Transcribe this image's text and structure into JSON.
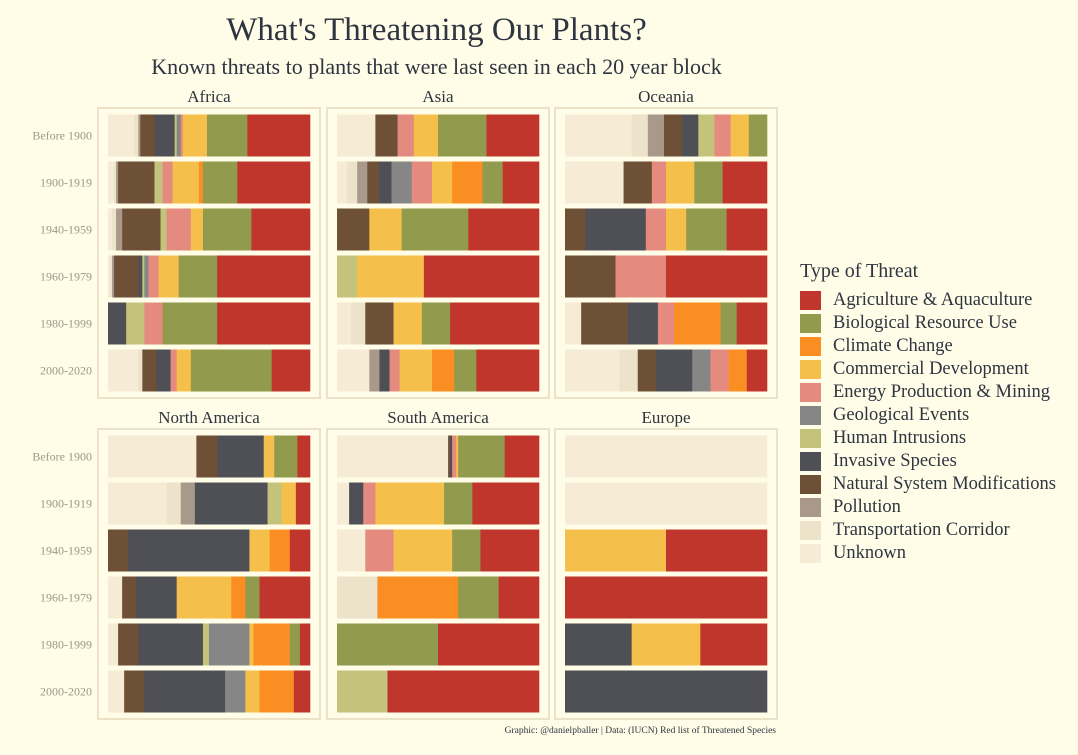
{
  "title": "What's Threatening Our Plants?",
  "subtitle": "Known threats to plants that were last seen in each 20 year block",
  "caption": "Graphic: @danielpballer | Data: (IUCN) Red list of Threatened Species",
  "legend": {
    "title": "Type of Threat",
    "items": [
      {
        "label": "Agriculture & Aquaculture",
        "color": "#c0362c"
      },
      {
        "label": "Biological Resource Use",
        "color": "#929b4d"
      },
      {
        "label": "Climate Change",
        "color": "#fb8e22"
      },
      {
        "label": "Commercial Development",
        "color": "#f4bf4b"
      },
      {
        "label": "Energy Production & Mining",
        "color": "#e58a7e"
      },
      {
        "label": "Geological Events",
        "color": "#868686"
      },
      {
        "label": "Human Intrusions",
        "color": "#c3c37b"
      },
      {
        "label": "Invasive Species",
        "color": "#4f4f56"
      },
      {
        "label": "Natural System Modifications",
        "color": "#6e5036"
      },
      {
        "label": "Pollution",
        "color": "#a8998a"
      },
      {
        "label": "Transportation Corridor",
        "color": "#ede3ca"
      },
      {
        "label": "Unknown",
        "color": "#f6ecd6"
      }
    ]
  },
  "chart_data": {
    "type": "bar",
    "orientation": "horizontal-stacked-proportion",
    "categories": [
      "Before 1900",
      "1900-1919",
      "1940-1959",
      "1960-1979",
      "1980-1999",
      "2000-2020"
    ],
    "stack_order": [
      "Unknown",
      "Transportation Corridor",
      "Pollution",
      "Natural System Modifications",
      "Invasive Species",
      "Human Intrusions",
      "Geological Events",
      "Energy Production & Mining",
      "Commercial Development",
      "Climate Change",
      "Biological Resource Use",
      "Agriculture & Aquaculture"
    ],
    "panels": [
      {
        "name": "Africa",
        "values": [
          [
            0.13,
            0.02,
            0.01,
            0.07,
            0.1,
            0.01,
            0.02,
            0.01,
            0.12,
            0,
            0.2,
            0.31
          ],
          [
            0.03,
            0.01,
            0.01,
            0.18,
            0,
            0.04,
            0,
            0.05,
            0.13,
            0.02,
            0.17,
            0.36
          ],
          [
            0.02,
            0.02,
            0.03,
            0.19,
            0,
            0.03,
            0,
            0.12,
            0.06,
            0,
            0.24,
            0.29
          ],
          [
            0.01,
            0.01,
            0.01,
            0.12,
            0.02,
            0.01,
            0.02,
            0.05,
            0.1,
            0,
            0.19,
            0.46
          ],
          [
            0,
            0,
            0,
            0,
            0.09,
            0.09,
            0,
            0.09,
            0,
            0,
            0.27,
            0.46
          ],
          [
            0.15,
            0.02,
            0,
            0.07,
            0.07,
            0,
            0,
            0.03,
            0.07,
            0,
            0.4,
            0.19
          ]
        ]
      },
      {
        "name": "Asia",
        "values": [
          [
            0.19,
            0,
            0,
            0.11,
            0,
            0,
            0,
            0.08,
            0.12,
            0,
            0.24,
            0.26
          ],
          [
            0.05,
            0.05,
            0.05,
            0.06,
            0.06,
            0,
            0.1,
            0.1,
            0.1,
            0.15,
            0.1,
            0.18
          ],
          [
            0,
            0,
            0,
            0.16,
            0,
            0,
            0,
            0,
            0.16,
            0,
            0.33,
            0.35
          ],
          [
            0,
            0,
            0,
            0,
            0,
            0.1,
            0,
            0,
            0.33,
            0,
            0,
            0.57
          ],
          [
            0.07,
            0.07,
            0,
            0.14,
            0,
            0,
            0,
            0,
            0.14,
            0,
            0.14,
            0.44
          ],
          [
            0.16,
            0,
            0.05,
            0,
            0.05,
            0,
            0,
            0.05,
            0.16,
            0.11,
            0.11,
            0.31
          ]
        ]
      },
      {
        "name": "Oceania",
        "values": [
          [
            0.33,
            0.08,
            0.08,
            0.09,
            0.08,
            0.08,
            0,
            0.08,
            0.09,
            0,
            0.09,
            0
          ],
          [
            0.29,
            0,
            0,
            0.14,
            0,
            0,
            0,
            0.07,
            0.14,
            0,
            0.14,
            0.22
          ],
          [
            0,
            0,
            0,
            0.1,
            0.3,
            0,
            0,
            0.1,
            0.1,
            0,
            0.2,
            0.2
          ],
          [
            0,
            0,
            0,
            0.25,
            0,
            0,
            0,
            0.25,
            0,
            0,
            0,
            0.5
          ],
          [
            0.08,
            0,
            0,
            0.23,
            0.15,
            0,
            0,
            0.08,
            0,
            0.23,
            0.08,
            0.15
          ],
          [
            0.27,
            0.09,
            0,
            0.09,
            0.18,
            0,
            0.09,
            0.09,
            0,
            0.09,
            0,
            0.1
          ]
        ]
      },
      {
        "name": "North America",
        "values": [
          [
            0.42,
            0,
            0,
            0.1,
            0.22,
            0,
            0,
            0,
            0.05,
            0,
            0.11,
            0.06
          ],
          [
            0.29,
            0.07,
            0.07,
            0,
            0.36,
            0.07,
            0,
            0,
            0.07,
            0,
            0,
            0.07
          ],
          [
            0,
            0,
            0,
            0.1,
            0.6,
            0,
            0,
            0,
            0.1,
            0.1,
            0,
            0.1
          ],
          [
            0.07,
            0,
            0,
            0.07,
            0.2,
            0,
            0,
            0,
            0.27,
            0.07,
            0.07,
            0.25
          ],
          [
            0.05,
            0,
            0,
            0.1,
            0.32,
            0.03,
            0.2,
            0,
            0.02,
            0.18,
            0.05,
            0.05
          ],
          [
            0.08,
            0,
            0,
            0.1,
            0.4,
            0,
            0.1,
            0,
            0.07,
            0.17,
            0,
            0.08
          ]
        ]
      },
      {
        "name": "South America",
        "values": [
          [
            0.55,
            0,
            0,
            0.01,
            0.01,
            0,
            0,
            0.02,
            0.01,
            0,
            0.23,
            0.17
          ],
          [
            0.06,
            0,
            0,
            0,
            0.07,
            0,
            0,
            0.06,
            0.34,
            0,
            0.14,
            0.33
          ],
          [
            0.14,
            0,
            0,
            0,
            0,
            0,
            0,
            0.14,
            0.29,
            0,
            0.14,
            0.29
          ],
          [
            0,
            0.2,
            0,
            0,
            0,
            0,
            0,
            0,
            0,
            0.4,
            0.2,
            0.2
          ],
          [
            0,
            0,
            0,
            0,
            0,
            0,
            0,
            0,
            0,
            0,
            0.5,
            0.5
          ],
          [
            0,
            0,
            0,
            0,
            0,
            0.25,
            0,
            0,
            0,
            0,
            0,
            0.75
          ]
        ]
      },
      {
        "name": "Europe",
        "values": [
          [
            1,
            0,
            0,
            0,
            0,
            0,
            0,
            0,
            0,
            0,
            0,
            0
          ],
          [
            1,
            0,
            0,
            0,
            0,
            0,
            0,
            0,
            0,
            0,
            0,
            0
          ],
          [
            0,
            0,
            0,
            0,
            0,
            0,
            0,
            0,
            0.5,
            0,
            0,
            0.5
          ],
          [
            0,
            0,
            0,
            0,
            0,
            0,
            0,
            0,
            0,
            0,
            0,
            1
          ],
          [
            0,
            0,
            0,
            0,
            0.33,
            0,
            0,
            0,
            0.34,
            0,
            0,
            0.33
          ],
          [
            0,
            0,
            0,
            0,
            1,
            0,
            0,
            0,
            0,
            0,
            0,
            0
          ]
        ]
      }
    ],
    "xlim": [
      0,
      1
    ],
    "grid": false,
    "legend_position": "right"
  }
}
